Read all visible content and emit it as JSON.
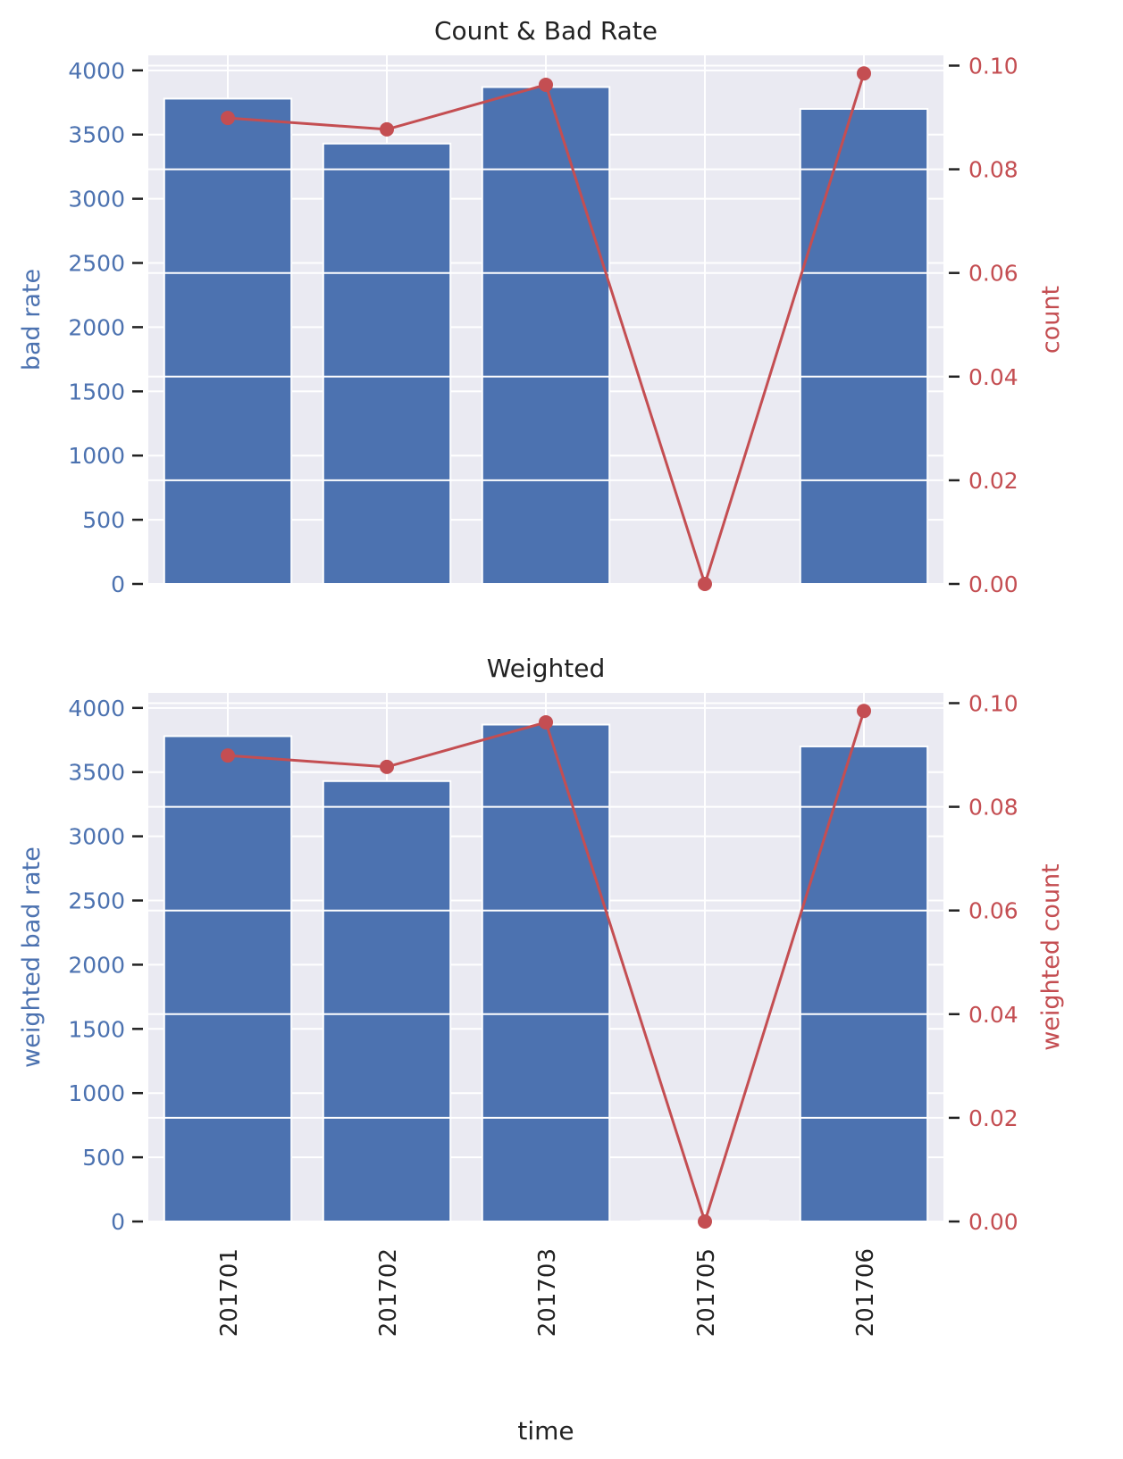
{
  "chart_data": [
    {
      "type": "bar",
      "title": "Count & Bad Rate",
      "xlabel": "",
      "ylabel": "bad rate",
      "y2label": "count",
      "categories": [
        "201701",
        "201702",
        "201703",
        "201705",
        "201706"
      ],
      "bar_values": [
        3780,
        3430,
        3870,
        0,
        3700
      ],
      "line_values": [
        0.0899,
        0.0877,
        0.0963,
        0.0,
        0.0985
      ],
      "ylim": [
        0,
        4000
      ],
      "y2lim": [
        0,
        0.1
      ],
      "yticks": [
        "0",
        "500",
        "1000",
        "1500",
        "2000",
        "2500",
        "3000",
        "3500",
        "4000"
      ],
      "y2ticks": [
        "0.00",
        "0.02",
        "0.04",
        "0.06",
        "0.08",
        "0.10"
      ],
      "grid": true,
      "colors": {
        "bars": "#4c72b0",
        "line": "#c44e52",
        "left_axis": "#4c72b0",
        "right_axis": "#c44e52",
        "background": "#eaeaf2"
      }
    },
    {
      "type": "bar",
      "title": "Weighted",
      "xlabel": "time",
      "ylabel": "weighted bad rate",
      "y2label": "weighted count",
      "categories": [
        "201701",
        "201702",
        "201703",
        "201705",
        "201706"
      ],
      "bar_values": [
        3780,
        3430,
        3870,
        5,
        3700
      ],
      "line_values": [
        0.0899,
        0.0877,
        0.0963,
        0.0,
        0.0985
      ],
      "ylim": [
        0,
        4000
      ],
      "y2lim": [
        0,
        0.1
      ],
      "yticks": [
        "0",
        "500",
        "1000",
        "1500",
        "2000",
        "2500",
        "3000",
        "3500",
        "4000"
      ],
      "y2ticks": [
        "0.00",
        "0.02",
        "0.04",
        "0.06",
        "0.08",
        "0.10"
      ],
      "grid": true,
      "colors": {
        "bars": "#4c72b0",
        "line": "#c44e52",
        "left_axis": "#4c72b0",
        "right_axis": "#c44e52",
        "background": "#eaeaf2"
      }
    }
  ]
}
